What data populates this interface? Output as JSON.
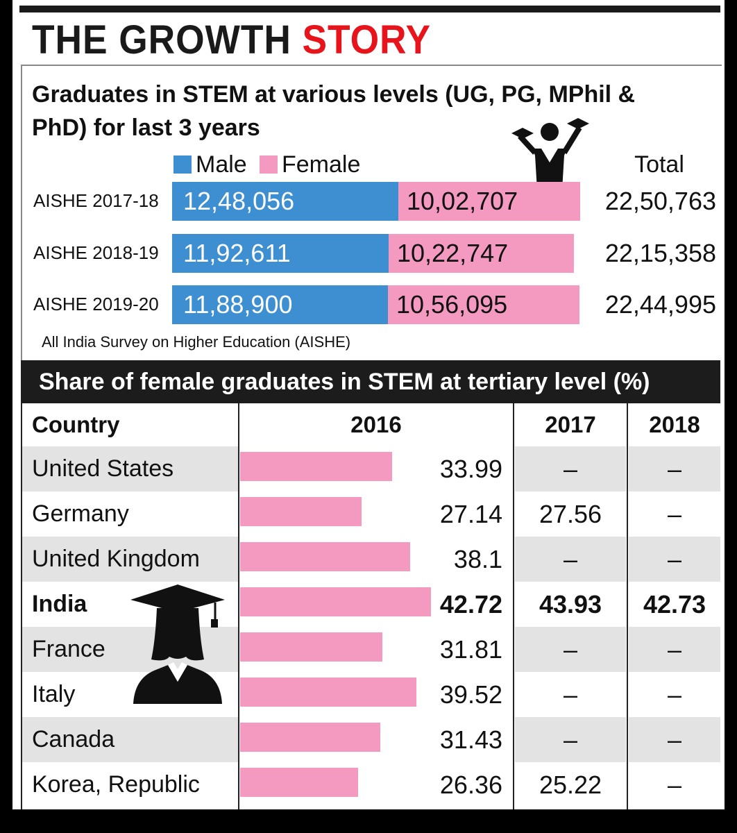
{
  "headline": {
    "part1": "THE GROWTH ",
    "part2": "STORY"
  },
  "section1": {
    "title": "Graduates in STEM at various levels (UG, PG, MPhil & PhD) for last 3 years",
    "legend": {
      "male": "Male",
      "female": "Female"
    },
    "total_header": "Total",
    "source": "All India Survey on Higher Education (AISHE)"
  },
  "section2": {
    "title": "Share of female graduates in STEM at tertiary level (%)",
    "headers": {
      "country": "Country",
      "y2016": "2016",
      "y2017": "2017",
      "y2018": "2018"
    }
  },
  "colors": {
    "male": "#3d8fd1",
    "female": "#f49ac1",
    "accent": "#e8141b"
  },
  "chart_data": [
    {
      "type": "bar",
      "title": "Graduates in STEM at various levels (UG, PG, MPhil & PhD) for last 3 years",
      "categories": [
        "AISHE 2017-18",
        "AISHE 2018-19",
        "AISHE 2019-20"
      ],
      "series": [
        {
          "name": "Male",
          "values": [
            1248056,
            1192611,
            1188900
          ],
          "labels": [
            "12,48,056",
            "11,92,611",
            "11,88,900"
          ]
        },
        {
          "name": "Female",
          "values": [
            1002707,
            1022747,
            1056095
          ],
          "labels": [
            "10,02,707",
            "10,22,747",
            "10,56,095"
          ]
        }
      ],
      "totals": [
        "22,50,763",
        "22,15,358",
        "22,44,995"
      ],
      "stacked": true
    },
    {
      "type": "table",
      "title": "Share of female graduates in STEM at tertiary level (%)",
      "columns": [
        "Country",
        "2016",
        "2017",
        "2018"
      ],
      "rows": [
        {
          "country": "United States",
          "y2016": 33.99,
          "v2016": "33.99",
          "v2017": "–",
          "v2018": "–",
          "highlight": false
        },
        {
          "country": "Germany",
          "y2016": 27.14,
          "v2016": "27.14",
          "v2017": "27.56",
          "v2018": "–",
          "highlight": false
        },
        {
          "country": "United Kingdom",
          "y2016": 38.1,
          "v2016": "38.1",
          "v2017": "–",
          "v2018": "–",
          "highlight": false
        },
        {
          "country": "India",
          "y2016": 42.72,
          "v2016": "42.72",
          "v2017": "43.93",
          "v2018": "42.73",
          "highlight": true
        },
        {
          "country": "France",
          "y2016": 31.81,
          "v2016": "31.81",
          "v2017": "–",
          "v2018": "–",
          "highlight": false
        },
        {
          "country": "Italy",
          "y2016": 39.52,
          "v2016": "39.52",
          "v2017": "–",
          "v2018": "–",
          "highlight": false
        },
        {
          "country": "Canada",
          "y2016": 31.43,
          "v2016": "31.43",
          "v2017": "–",
          "v2018": "–",
          "highlight": false
        },
        {
          "country": "Korea, Republic",
          "y2016": 26.36,
          "v2016": "26.36",
          "v2017": "25.22",
          "v2018": "–",
          "highlight": false
        }
      ]
    }
  ]
}
